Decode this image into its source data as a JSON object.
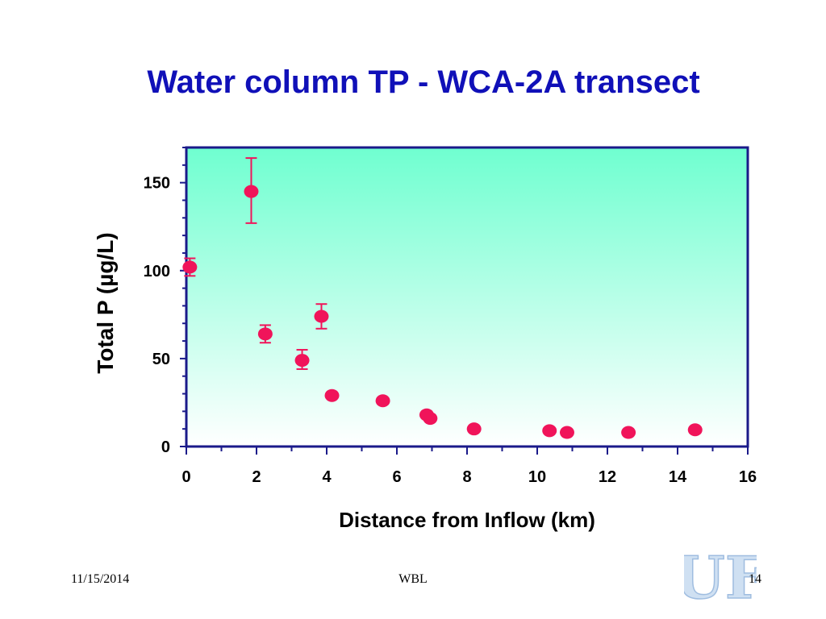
{
  "slide": {
    "title": "Water column TP - WCA-2A transect",
    "footer_date": "11/15/2014",
    "footer_center": "WBL",
    "page_number": "14",
    "logo_text": "UF"
  },
  "colors": {
    "title": "#1010b8",
    "plot_border": "#1a1a8a",
    "gradient_top": "#6fffd0",
    "gradient_bottom": "#ffffff",
    "marker": "#f0145a",
    "logo": "#cfe0f2"
  },
  "chart_data": {
    "type": "scatter",
    "title": "",
    "xlabel": "Distance from Inflow (km)",
    "ylabel": "Total P (µg/L)",
    "xlim": [
      0,
      16
    ],
    "ylim": [
      0,
      170
    ],
    "xticks": [
      0,
      2,
      4,
      6,
      8,
      10,
      12,
      14,
      16
    ],
    "yticks": [
      0,
      50,
      100,
      150
    ],
    "grid": false,
    "legend": "none",
    "series": [
      {
        "points": [
          {
            "x": 0.1,
            "y": 102,
            "err_low": 97,
            "err_high": 107
          },
          {
            "x": 1.85,
            "y": 145,
            "err_low": 127,
            "err_high": 164
          },
          {
            "x": 2.25,
            "y": 64,
            "err_low": 59,
            "err_high": 69
          },
          {
            "x": 3.3,
            "y": 49,
            "err_low": 44,
            "err_high": 55
          },
          {
            "x": 3.85,
            "y": 74,
            "err_low": 67,
            "err_high": 81
          },
          {
            "x": 4.15,
            "y": 29
          },
          {
            "x": 5.6,
            "y": 26
          },
          {
            "x": 6.85,
            "y": 18
          },
          {
            "x": 6.95,
            "y": 16
          },
          {
            "x": 8.2,
            "y": 10
          },
          {
            "x": 10.35,
            "y": 9
          },
          {
            "x": 10.85,
            "y": 8
          },
          {
            "x": 12.6,
            "y": 8
          },
          {
            "x": 14.5,
            "y": 9.5
          }
        ]
      }
    ]
  }
}
